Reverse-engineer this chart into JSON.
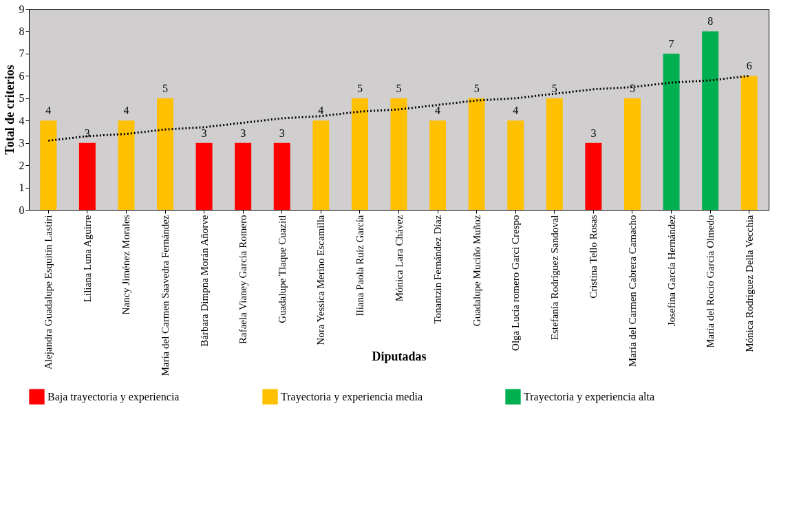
{
  "chart_data": {
    "type": "bar",
    "xlabel": "Diputadas",
    "ylabel": "Total de criterios",
    "categories": [
      "Alejandra Guadalupe Esquitín Lastiri",
      "Liliana Luna Aguirre",
      "Nancy Jiménez Morales",
      "María del Carmen Saavedra Fernández",
      "Bárbara Dimpna Morán Añorve",
      "Rafaela Vianey García Romero",
      "Guadalupe Tlaque Cuazitl",
      "Nora Yessica Merino Escamilla",
      "Iliana Paola Ruíz García",
      "Mónica Lara Chávez",
      "Tonantzin Fernández Díaz",
      "Guadalupe Muciño Muñoz",
      "Olga Lucía romero Garci Crespo",
      "Estefanía Rodríguez Sandoval",
      "Cristina Tello Rosas",
      "María del Carmen Cabrera Camacho",
      "Josefina García Hernández",
      "María del Rocio García Olmedo",
      "Mónica Rodriguez Della Vecchia"
    ],
    "series": [
      {
        "name": "Baja trayectoria y experiencia",
        "color": "#ff0000",
        "values": [
          null,
          3,
          null,
          null,
          3,
          3,
          3,
          null,
          null,
          null,
          null,
          null,
          null,
          null,
          3,
          null,
          null,
          null,
          null
        ],
        "value_labels": [
          null,
          "3",
          null,
          null,
          "3",
          "3",
          "3",
          null,
          null,
          null,
          null,
          null,
          null,
          null,
          "3",
          null,
          null,
          null,
          null
        ]
      },
      {
        "name": "Trayectoria y experiencia media",
        "color": "#ffc000",
        "values": [
          4,
          null,
          4,
          5,
          null,
          null,
          null,
          4,
          5,
          5,
          4,
          5,
          4,
          5,
          null,
          5,
          null,
          null,
          6
        ],
        "value_labels": [
          "4",
          null,
          "4",
          "5",
          null,
          null,
          null,
          "4",
          "5",
          "5",
          "4",
          "5",
          "4",
          "5",
          null,
          "5",
          null,
          null,
          "6"
        ]
      },
      {
        "name": "Trayectoria y experiencia alta",
        "color": "#00b050",
        "values": [
          null,
          null,
          null,
          null,
          null,
          null,
          null,
          null,
          null,
          null,
          null,
          null,
          null,
          null,
          null,
          null,
          7,
          8,
          null
        ],
        "value_labels": [
          null,
          null,
          null,
          null,
          null,
          null,
          null,
          null,
          null,
          null,
          null,
          null,
          null,
          null,
          null,
          null,
          "7",
          "8",
          null
        ]
      },
      {
        "type": "line",
        "color": "#000000",
        "line_style": "dotted",
        "values": [
          3.1,
          3.3,
          3.4,
          3.6,
          3.7,
          3.9,
          4.1,
          4.2,
          4.4,
          4.5,
          4.7,
          4.9,
          5.0,
          5.2,
          5.4,
          5.5,
          5.7,
          5.8,
          6.0
        ]
      }
    ],
    "ylim": [
      0,
      9
    ],
    "yticks": [
      0,
      1,
      2,
      3,
      4,
      5,
      6,
      7,
      8,
      9
    ],
    "grid": false,
    "legend": "bottom"
  }
}
